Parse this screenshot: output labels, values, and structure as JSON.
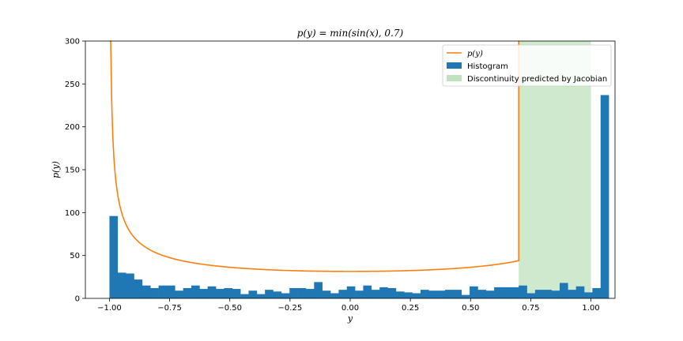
{
  "chart_data": {
    "type": "bar",
    "title": "p(y) = min(sin(x), 0.7)",
    "xlabel": "y",
    "ylabel": "p(y)",
    "xlim": [
      -1.1,
      1.1
    ],
    "ylim": [
      0,
      300
    ],
    "xticks": [
      -1.0,
      -0.75,
      -0.5,
      -0.25,
      0.0,
      0.25,
      0.5,
      0.75,
      1.0
    ],
    "xtick_labels": [
      "−1.00",
      "−0.75",
      "−0.50",
      "−0.25",
      "0.00",
      "0.25",
      "0.50",
      "0.75",
      "1.00"
    ],
    "yticks": [
      0,
      50,
      100,
      150,
      200,
      250,
      300
    ],
    "ytick_labels": [
      "0",
      "50",
      "100",
      "150",
      "200",
      "250",
      "300"
    ],
    "grid": false,
    "legend_position": "top-right",
    "colors": {
      "histogram": "#1f77b4",
      "density": "#ff7f0e",
      "region": "#2ca02c"
    },
    "histogram": {
      "name": "Histogram",
      "bin_start": -1.0,
      "bin_width": 0.034,
      "values": [
        96,
        30,
        29,
        22,
        15,
        12,
        15,
        15,
        9,
        12,
        15,
        11,
        14,
        11,
        12,
        11,
        5,
        9,
        5,
        10,
        8,
        6,
        12,
        12,
        11,
        19,
        9,
        6,
        10,
        14,
        9,
        15,
        10,
        13,
        12,
        8,
        7,
        6,
        10,
        9,
        9,
        10,
        10,
        4,
        14,
        10,
        9,
        13,
        13,
        13,
        15,
        6,
        10,
        10,
        9,
        18,
        10,
        14,
        7,
        12,
        237
      ]
    },
    "density": {
      "name": "p(y)",
      "x_start": -0.999,
      "x_end": 0.7,
      "upper_cap": 0.7,
      "scale": 31.4
    },
    "region": {
      "name": "Discontinuity predicted by Jacobian",
      "x_range": [
        0.7,
        1.0
      ]
    }
  }
}
